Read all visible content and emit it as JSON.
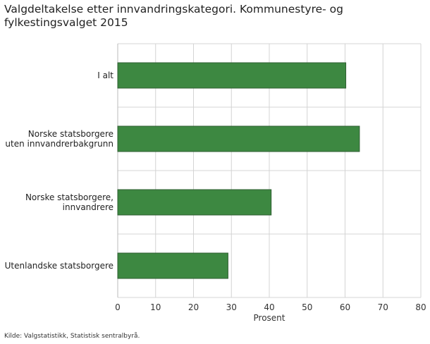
{
  "chart_data": {
    "type": "bar",
    "orientation": "horizontal",
    "title": "Valgdeltakelse etter innvandringskategori. Kommunestyre- og fylkestingsvalget 2015",
    "categories": [
      [
        "I alt"
      ],
      [
        "Norske statsborgere",
        "uten innvandrerbakgrunn"
      ],
      [
        "Norske statsborgere,",
        "innvandrere"
      ],
      [
        "Utenlandske statsborgere"
      ]
    ],
    "values": [
      60.2,
      63.8,
      40.5,
      29.1
    ],
    "xlabel": "Prosent",
    "ylabel": "",
    "xlim": [
      0,
      80
    ],
    "xticks": [
      0,
      10,
      20,
      30,
      40,
      50,
      60,
      70,
      80
    ],
    "grid": true,
    "colors": {
      "bar": "#3d8841",
      "bar_border": "#2e5e31",
      "grid": "#d4d4d4"
    }
  },
  "source": "Kilde: Valgstatistikk, Statistisk sentralbyrå."
}
